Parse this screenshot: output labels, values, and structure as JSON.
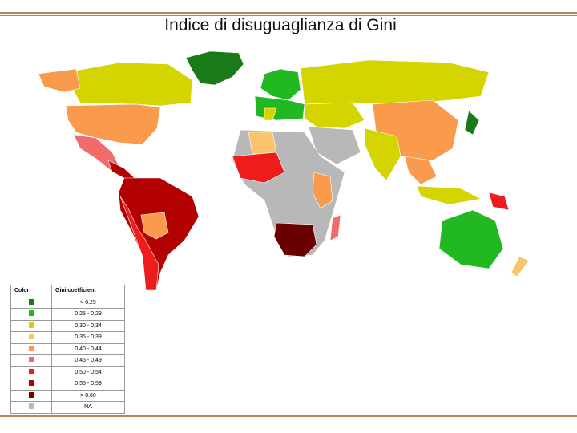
{
  "title": "Indice di disuguaglianza di Gini",
  "legend": {
    "headers": [
      "Color",
      "Gini coefficient"
    ],
    "rows": [
      {
        "color": "#1a7a1a",
        "label": "< 0.25"
      },
      {
        "color": "#22b822",
        "label": "0,25 - 0,29"
      },
      {
        "color": "#d4d400",
        "label": "0,30 - 0,34"
      },
      {
        "color": "#f9c46b",
        "label": "0,35 - 0,39"
      },
      {
        "color": "#f99a4c",
        "label": "0,40 - 0,44"
      },
      {
        "color": "#f26b6b",
        "label": "0,45 - 0,49"
      },
      {
        "color": "#ee1c1c",
        "label": "0,50 - 0,54"
      },
      {
        "color": "#b30000",
        "label": "0,55 - 0,59"
      },
      {
        "color": "#6b0000",
        "label": "> 0.60"
      },
      {
        "color": "#b8b8b8",
        "label": "NA"
      }
    ]
  }
}
